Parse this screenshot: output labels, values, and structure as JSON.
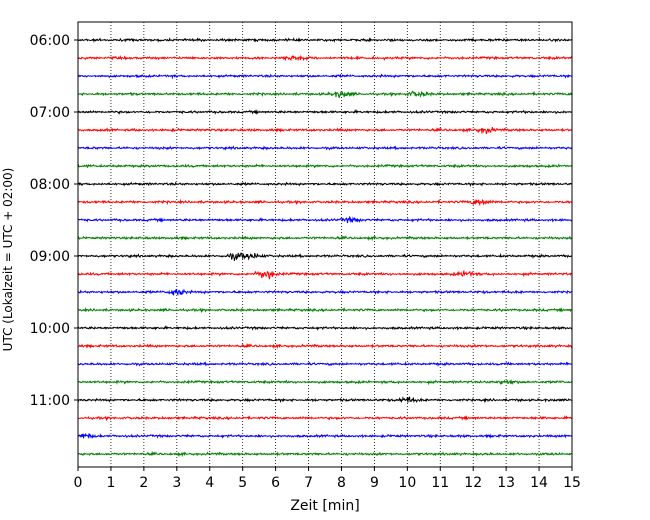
{
  "chart_data": {
    "type": "line",
    "title": "",
    "xlabel": "Zeit  [min]",
    "ylabel": "UTC (Lokalzeit = UTC + 02:00)",
    "xlim": [
      0,
      15
    ],
    "x_ticks": [
      0,
      1,
      2,
      3,
      4,
      5,
      6,
      7,
      8,
      9,
      10,
      11,
      12,
      13,
      14,
      15
    ],
    "x_tick_labels": [
      "0",
      "1",
      "2",
      "3",
      "4",
      "5",
      "6",
      "7",
      "8",
      "9",
      "10",
      "11",
      "12",
      "13",
      "14",
      "15"
    ],
    "y_ticks": [
      {
        "label": "06:00",
        "row": 0
      },
      {
        "label": "07:00",
        "row": 4
      },
      {
        "label": "08:00",
        "row": 8
      },
      {
        "label": "09:00",
        "row": 12
      },
      {
        "label": "10:00",
        "row": 16
      },
      {
        "label": "11:00",
        "row": 20
      }
    ],
    "grid_x": true,
    "grid_style": "dotted",
    "row_interval_min": 15,
    "colors": [
      "#000000",
      "#ff0000",
      "#0000ff",
      "#008000"
    ],
    "series": [
      {
        "start": "06:00",
        "color": "#000000",
        "events": []
      },
      {
        "start": "06:15",
        "color": "#ff0000",
        "events": [
          {
            "t": 6.6,
            "amp": 1.6
          }
        ]
      },
      {
        "start": "06:30",
        "color": "#0000ff",
        "events": []
      },
      {
        "start": "06:45",
        "color": "#008000",
        "events": [
          {
            "t": 8.0,
            "amp": 2.2
          },
          {
            "t": 10.3,
            "amp": 1.8
          }
        ]
      },
      {
        "start": "07:00",
        "color": "#000000",
        "events": []
      },
      {
        "start": "07:15",
        "color": "#ff0000",
        "events": [
          {
            "t": 12.4,
            "amp": 1.8
          }
        ]
      },
      {
        "start": "07:30",
        "color": "#0000ff",
        "events": []
      },
      {
        "start": "07:45",
        "color": "#008000",
        "events": []
      },
      {
        "start": "08:00",
        "color": "#000000",
        "events": []
      },
      {
        "start": "08:15",
        "color": "#ff0000",
        "events": [
          {
            "t": 12.2,
            "amp": 2.2
          }
        ]
      },
      {
        "start": "08:30",
        "color": "#0000ff",
        "events": [
          {
            "t": 8.3,
            "amp": 1.4
          }
        ]
      },
      {
        "start": "08:45",
        "color": "#008000",
        "events": []
      },
      {
        "start": "09:00",
        "color": "#000000",
        "events": [
          {
            "t": 4.8,
            "amp": 2.0
          },
          {
            "t": 5.3,
            "amp": 1.8
          }
        ]
      },
      {
        "start": "09:15",
        "color": "#ff0000",
        "events": [
          {
            "t": 5.7,
            "amp": 3.5
          },
          {
            "t": 11.8,
            "amp": 1.5
          }
        ]
      },
      {
        "start": "09:30",
        "color": "#0000ff",
        "events": [
          {
            "t": 3.0,
            "amp": 2.2
          }
        ]
      },
      {
        "start": "09:45",
        "color": "#008000",
        "events": []
      },
      {
        "start": "10:00",
        "color": "#000000",
        "events": []
      },
      {
        "start": "10:15",
        "color": "#ff0000",
        "events": []
      },
      {
        "start": "10:30",
        "color": "#0000ff",
        "events": []
      },
      {
        "start": "10:45",
        "color": "#008000",
        "events": [
          {
            "t": 13.0,
            "amp": 1.4
          }
        ]
      },
      {
        "start": "11:00",
        "color": "#000000",
        "events": [
          {
            "t": 10.0,
            "amp": 2.0
          }
        ]
      },
      {
        "start": "11:15",
        "color": "#ff0000",
        "events": []
      },
      {
        "start": "11:30",
        "color": "#0000ff",
        "events": [
          {
            "t": 0.2,
            "amp": 1.6
          }
        ]
      },
      {
        "start": "11:45",
        "color": "#008000",
        "events": []
      }
    ]
  }
}
